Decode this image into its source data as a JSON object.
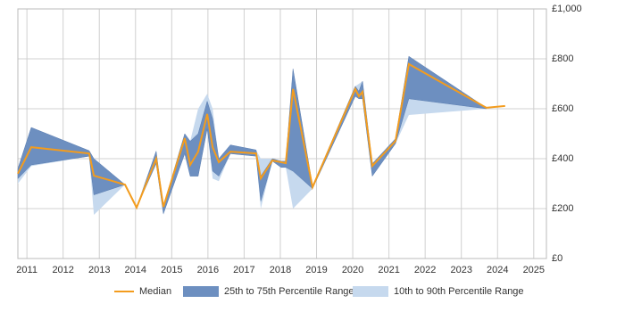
{
  "chart_data": {
    "type": "range-line",
    "x": [
      2010.75,
      2011.12,
      2012.72,
      2012.85,
      2013.71,
      2014.03,
      2014.57,
      2014.77,
      2015.36,
      2015.51,
      2015.73,
      2015.98,
      2016.13,
      2016.3,
      2016.62,
      2017.33,
      2017.46,
      2017.78,
      2018.02,
      2018.15,
      2018.35,
      2018.89,
      2020.07,
      2020.17,
      2020.27,
      2020.54,
      2021.18,
      2021.55,
      2023.69,
      2024.21
    ],
    "series": [
      {
        "name": "Median",
        "color": "#f39c1e",
        "values": [
          340,
          446,
          421,
          332,
          296,
          204,
          400,
          207,
          482,
          375,
          428,
          579,
          446,
          386,
          428,
          421,
          321,
          393,
          386,
          382,
          679,
          286,
          679,
          650,
          668,
          371,
          471,
          779,
          604,
          611
        ]
      },
      {
        "name": "25th to 75th Percentile Range",
        "color": "#6d8fc0",
        "low": [
          320,
          375,
          410,
          255,
          296,
          204,
          380,
          180,
          420,
          330,
          330,
          520,
          350,
          330,
          420,
          410,
          230,
          390,
          365,
          365,
          350,
          280,
          650,
          640,
          640,
          330,
          460,
          640,
          600,
          null
        ],
        "high": [
          360,
          525,
          432,
          400,
          296,
          204,
          430,
          210,
          500,
          470,
          500,
          630,
          560,
          400,
          455,
          435,
          330,
          400,
          390,
          390,
          760,
          290,
          690,
          670,
          710,
          380,
          480,
          810,
          604,
          null
        ]
      },
      {
        "name": "10th to 90th Percentile Range",
        "color": "#c6d9ee",
        "low": [
          300,
          370,
          410,
          175,
          296,
          204,
          380,
          175,
          420,
          330,
          330,
          520,
          320,
          310,
          420,
          410,
          200,
          390,
          365,
          365,
          200,
          280,
          650,
          640,
          640,
          330,
          460,
          575,
          600,
          null
        ],
        "high": [
          360,
          525,
          432,
          400,
          296,
          204,
          430,
          210,
          500,
          470,
          600,
          660,
          600,
          400,
          455,
          435,
          400,
          400,
          390,
          390,
          760,
          290,
          690,
          700,
          710,
          380,
          480,
          810,
          604,
          null
        ]
      }
    ],
    "xlim": [
      2010.75,
      2025.35
    ],
    "xticks": [
      2011,
      2012,
      2013,
      2014,
      2015,
      2016,
      2017,
      2018,
      2019,
      2020,
      2021,
      2022,
      2023,
      2024,
      2025
    ],
    "ylim": [
      0,
      1000
    ],
    "yticks": [
      {
        "value": 0,
        "label": "£0"
      },
      {
        "value": 200,
        "label": "£200"
      },
      {
        "value": 400,
        "label": "£400"
      },
      {
        "value": 600,
        "label": "£600"
      },
      {
        "value": 800,
        "label": "£800"
      },
      {
        "value": 1000,
        "label": "£1,000"
      }
    ],
    "grid": true,
    "legend": "bottom"
  }
}
